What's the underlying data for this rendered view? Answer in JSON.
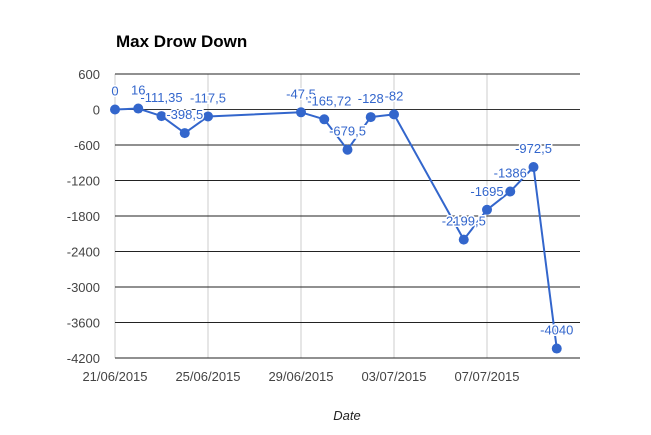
{
  "chart_data": {
    "type": "line",
    "title": "Max Drow Down",
    "xlabel": "Date",
    "ylabel": "",
    "ylim": [
      -4200,
      600
    ],
    "yticks": [
      600,
      0,
      -600,
      -1200,
      -1800,
      -2400,
      -3000,
      -3600,
      -4200
    ],
    "xlim": [
      "2015-06-21",
      "2015-07-11"
    ],
    "xticks": [
      {
        "date": "2015-06-21",
        "label": "21/06/2015"
      },
      {
        "date": "2015-06-25",
        "label": "25/06/2015"
      },
      {
        "date": "2015-06-29",
        "label": "29/06/2015"
      },
      {
        "date": "2015-07-03",
        "label": "03/07/2015"
      },
      {
        "date": "2015-07-07",
        "label": "07/07/2015"
      }
    ],
    "grid": true,
    "color": "#3366cc",
    "points": [
      {
        "x": "2015-06-21",
        "y": 0,
        "label": "0"
      },
      {
        "x": "2015-06-22",
        "y": 16,
        "label": "16"
      },
      {
        "x": "2015-06-23",
        "y": -111.35,
        "label": "-111,35"
      },
      {
        "x": "2015-06-24",
        "y": -398.5,
        "label": "-398,5"
      },
      {
        "x": "2015-06-25",
        "y": -117.5,
        "label": "-117,5"
      },
      {
        "x": "2015-06-29",
        "y": -47.5,
        "label": "-47,5"
      },
      {
        "x": "2015-06-30",
        "y": -165.72,
        "label": "-165,72"
      },
      {
        "x": "2015-07-01",
        "y": -679.5,
        "label": "-679,5"
      },
      {
        "x": "2015-07-02",
        "y": -128,
        "label": "-128"
      },
      {
        "x": "2015-07-03",
        "y": -82,
        "label": "-82"
      },
      {
        "x": "2015-07-06",
        "y": -2199.5,
        "label": "-2199,5"
      },
      {
        "x": "2015-07-07",
        "y": -1695,
        "label": "-1695"
      },
      {
        "x": "2015-07-08",
        "y": -1386,
        "label": "-1386"
      },
      {
        "x": "2015-07-09",
        "y": -972.5,
        "label": "-972,5"
      },
      {
        "x": "2015-07-10",
        "y": -4040,
        "label": "-4040"
      }
    ]
  }
}
